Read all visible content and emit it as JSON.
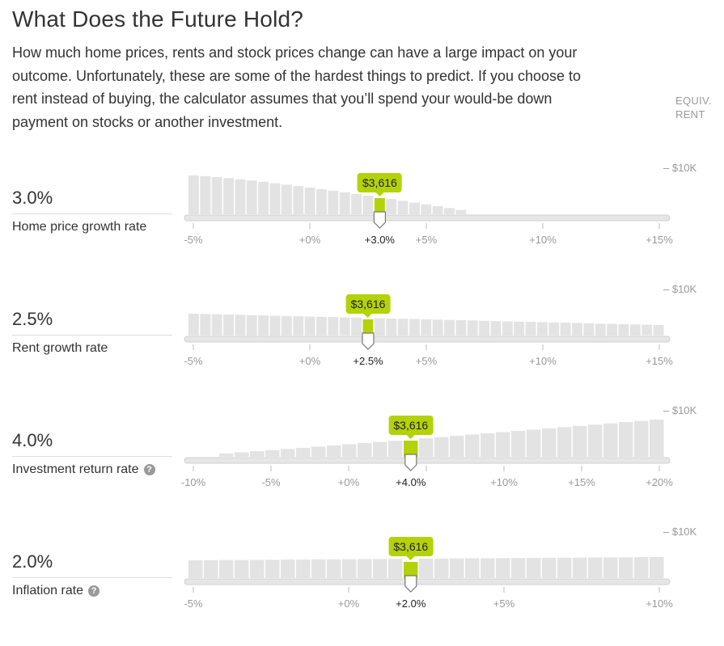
{
  "header": {
    "title": "What Does the Future Hold?",
    "intro": "How much home prices, rents and stock prices change can have a large impact on your outcome. Unfortunately, these are some of the hardest things to predict. If you choose to rent instead of buying, the calculator assumes that you’ll spend your would-be down payment on stocks or another investment.",
    "column_heading_line1": "EQUIV.",
    "column_heading_line2": "RENT"
  },
  "sliders": [
    {
      "name": "home-price-growth",
      "label": "Home price growth rate",
      "value_display": "3.0%",
      "value": 3.0,
      "current_tick": "+3.0%",
      "tooltip": "$3,616",
      "has_help": false,
      "scale_label": "– $10K",
      "min": -5,
      "max": 15,
      "step": 0.5,
      "ticks": [
        {
          "v": -5,
          "label": "-5%"
        },
        {
          "v": 0,
          "label": "+0%"
        },
        {
          "v": 5,
          "label": "+5%"
        },
        {
          "v": 10,
          "label": "+10%"
        },
        {
          "v": 15,
          "label": "+15%"
        }
      ],
      "bar_trend": "decreasing"
    },
    {
      "name": "rent-growth",
      "label": "Rent growth rate",
      "value_display": "2.5%",
      "value": 2.5,
      "current_tick": "+2.5%",
      "tooltip": "$3,616",
      "has_help": false,
      "scale_label": "– $10K",
      "min": -5,
      "max": 15,
      "step": 0.5,
      "ticks": [
        {
          "v": -5,
          "label": "-5%"
        },
        {
          "v": 0,
          "label": "+0%"
        },
        {
          "v": 5,
          "label": "+5%"
        },
        {
          "v": 10,
          "label": "+10%"
        },
        {
          "v": 15,
          "label": "+15%"
        }
      ],
      "bar_trend": "flat"
    },
    {
      "name": "investment-return",
      "label": "Investment return rate",
      "value_display": "4.0%",
      "value": 4.0,
      "current_tick": "+4.0%",
      "tooltip": "$3,616",
      "has_help": true,
      "help_glyph": "?",
      "scale_label": "– $10K",
      "min": -10,
      "max": 20,
      "step": 1,
      "ticks": [
        {
          "v": -10,
          "label": "-10%"
        },
        {
          "v": -5,
          "label": "-5%"
        },
        {
          "v": 0,
          "label": "+0%"
        },
        {
          "v": 5,
          "label": "+5%"
        },
        {
          "v": 10,
          "label": "+10%"
        },
        {
          "v": 15,
          "label": "+15%"
        },
        {
          "v": 20,
          "label": "+20%"
        }
      ],
      "bar_trend": "increasing"
    },
    {
      "name": "inflation",
      "label": "Inflation rate",
      "value_display": "2.0%",
      "value": 2.0,
      "current_tick": "+2.0%",
      "tooltip": "$3,616",
      "has_help": true,
      "help_glyph": "?",
      "scale_label": "– $10K",
      "min": -5,
      "max": 10,
      "step": 0.5,
      "ticks": [
        {
          "v": -5,
          "label": "-5%"
        },
        {
          "v": 0,
          "label": "+0%"
        },
        {
          "v": 5,
          "label": "+5%"
        },
        {
          "v": 10,
          "label": "+10%"
        }
      ],
      "bar_trend": "flat"
    }
  ],
  "colors": {
    "accent": "#b4d20a",
    "bar": "#e3e3e3",
    "track": "#e6e6e6",
    "muted_text": "#999999",
    "text": "#333333"
  }
}
